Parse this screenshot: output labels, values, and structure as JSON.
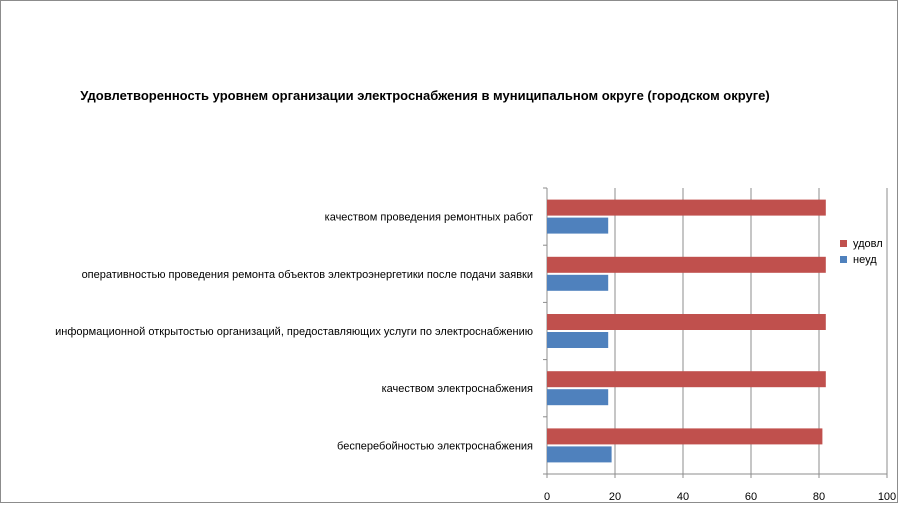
{
  "chart_data": {
    "type": "bar",
    "orientation": "horizontal",
    "title": "Удовлетворенность уровнем организации электроснабжения в муниципальном округе (городском округе)",
    "categories": [
      "качеством проведения ремонтных работ",
      "оперативностью проведения ремонта объектов электроэнергетики после подачи заявки",
      "информационной открытостью организаций, предоставляющих услуги по электроснабжению",
      "качеством электроснабжения",
      "бесперебойностью электроснабжения"
    ],
    "series": [
      {
        "name": "удовл",
        "color": "#c0504d",
        "values": [
          82,
          82,
          82,
          82,
          81
        ]
      },
      {
        "name": "неуд",
        "color": "#4f81bd",
        "values": [
          18,
          18,
          18,
          18,
          19
        ]
      }
    ],
    "xlim": [
      0,
      100
    ],
    "xticks": [
      "0",
      "20",
      "40",
      "60",
      "80",
      "100"
    ],
    "grid": true,
    "gridlines": "vertical",
    "legend": "right"
  }
}
